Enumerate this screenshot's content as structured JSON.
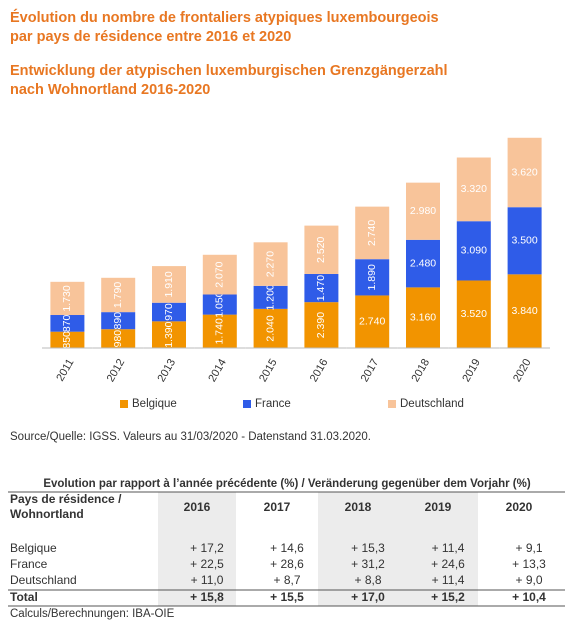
{
  "chart_data": {
    "type": "bar",
    "stacked": true,
    "title": [
      "Évolution du nombre de frontaliers atypiques luxembourgeois",
      "par pays de résidence entre 2016 et 2020"
    ],
    "subtitle": [
      "Entwicklung der atypischen luxemburgischen Grenzgängerzahl",
      "nach Wohnortland 2016-2020"
    ],
    "categories": [
      "2011",
      "2012",
      "2013",
      "2014",
      "2015",
      "2016",
      "2017",
      "2018",
      "2019",
      "2020"
    ],
    "series": [
      {
        "name": "Belgique",
        "color": "#f29400",
        "values": [
          850,
          980,
          1390,
          1740,
          2040,
          2390,
          2740,
          3160,
          3520,
          3840
        ],
        "value_labels": [
          "850",
          "980",
          "1.390",
          "1.740",
          "2.040",
          "2.390",
          "2.740",
          "3.160",
          "3.520",
          "3.840"
        ]
      },
      {
        "name": "France",
        "color": "#2f5ce8",
        "values": [
          870,
          890,
          970,
          1050,
          1200,
          1470,
          1890,
          2480,
          3090,
          3500
        ],
        "value_labels": [
          "870",
          "890",
          "970",
          "1.050",
          "1.200",
          "1.470",
          "1.890",
          "2.480",
          "3.090",
          "3.500"
        ]
      },
      {
        "name": "Deutschland",
        "color": "#f8c49a",
        "values": [
          1730,
          1790,
          1910,
          2070,
          2270,
          2520,
          2740,
          2980,
          3320,
          3620
        ],
        "value_labels": [
          "1.730",
          "1.790",
          "1.910",
          "2.070",
          "2.270",
          "2.520",
          "2.740",
          "2.980",
          "3.320",
          "3.620"
        ]
      }
    ],
    "ylim": [
      0,
      11000
    ],
    "legend": "bottom"
  },
  "source": "Source/Quelle: IGSS. Valeurs au 31/03/2020 - Datenstand 31.03.2020.",
  "table": {
    "title": "Evolution par rapport à l’année précédente (%) / Veränderung gegenüber dem Vorjahr (%)",
    "header_label": [
      "Pays de résidence /",
      "Wohnortland"
    ],
    "columns": [
      "2016",
      "2017",
      "2018",
      "2019",
      "2020"
    ],
    "rows": [
      [
        "Belgique",
        "+ 17,2",
        "+ 14,6",
        "+ 15,3",
        "+ 11,4",
        "+ 9,1"
      ],
      [
        "France",
        "+ 22,5",
        "+ 28,6",
        "+ 31,2",
        "+ 24,6",
        "+ 13,3"
      ],
      [
        "Deutschland",
        "+ 11,0",
        "+ 8,7",
        "+ 8,8",
        "+ 11,4",
        "+ 9,0"
      ],
      [
        "Total",
        "+ 15,8",
        "+ 15,5",
        "+ 17,0",
        "+ 15,2",
        "+ 10,4"
      ]
    ]
  },
  "footer": "Calculs/Berechnungen: IBA-OIE"
}
